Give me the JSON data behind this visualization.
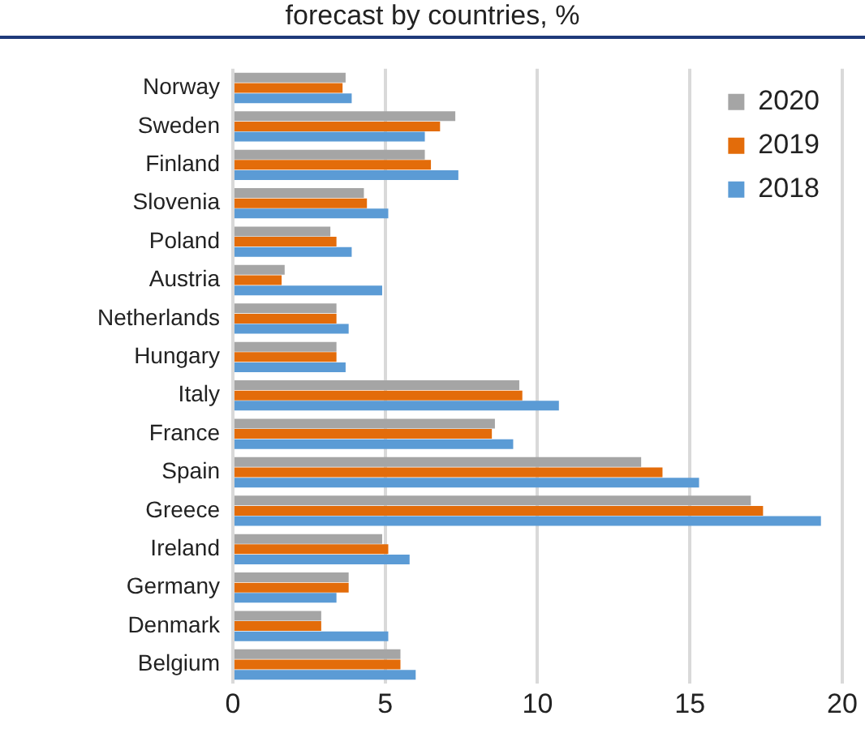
{
  "chart_data": {
    "type": "bar",
    "orientation": "horizontal",
    "title": "forecast by countries, %",
    "categories": [
      "Norway",
      "Sweden",
      "Finland",
      "Slovenia",
      "Poland",
      "Austria",
      "Netherlands",
      "Hungary",
      "Italy",
      "France",
      "Spain",
      "Greece",
      "Ireland",
      "Germany",
      "Denmark",
      "Belgium"
    ],
    "series": [
      {
        "name": "2020",
        "color": "#a5a5a5",
        "values": [
          3.7,
          7.3,
          6.3,
          4.3,
          3.2,
          1.7,
          3.4,
          3.4,
          9.4,
          8.6,
          13.4,
          17.0,
          4.9,
          3.8,
          2.9,
          5.5
        ]
      },
      {
        "name": "2019",
        "color": "#e36c0a",
        "values": [
          3.6,
          6.8,
          6.5,
          4.4,
          3.4,
          1.6,
          3.4,
          3.4,
          9.5,
          8.5,
          14.1,
          17.4,
          5.1,
          3.8,
          2.9,
          5.5
        ]
      },
      {
        "name": "2018",
        "color": "#5b9bd5",
        "values": [
          3.9,
          6.3,
          7.4,
          5.1,
          3.9,
          4.9,
          3.8,
          3.7,
          10.7,
          9.2,
          15.3,
          19.3,
          5.8,
          3.4,
          5.1,
          6.0
        ]
      }
    ],
    "xlim": [
      0,
      20
    ],
    "xticks": [
      0,
      5,
      10,
      15,
      20
    ],
    "grid": "x",
    "legend": "top right"
  }
}
